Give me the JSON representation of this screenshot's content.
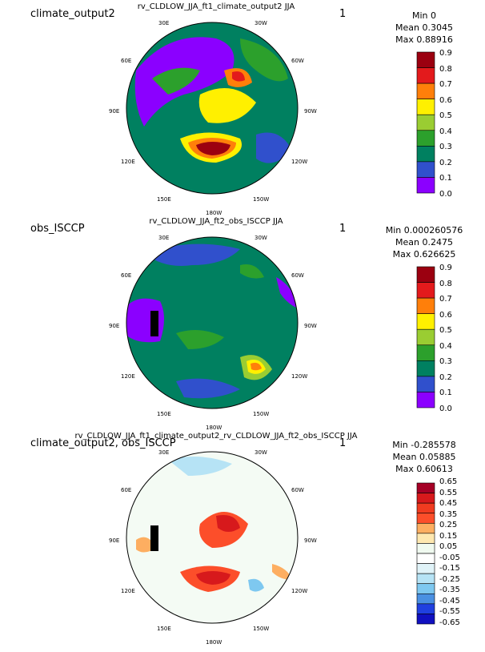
{
  "panels": [
    {
      "left_label": "climate_output2",
      "title": "rv_CLDLOW_JJA_ft1_climate_output2  JJA",
      "right_label": "1",
      "stats": [
        "Min 0",
        "Mean 0.3045",
        "Max 0.88916"
      ],
      "colorbar": {
        "ticks": [
          "0.9",
          "0.8",
          "0.7",
          "0.6",
          "0.5",
          "0.4",
          "0.3",
          "0.2",
          "0.1",
          "0.0"
        ],
        "colors": [
          "#9b0010",
          "#e31a1c",
          "#ff7f0a",
          "#fff000",
          "#9acd32",
          "#2ca02c",
          "#008060",
          "#3050cc",
          "#8b00ff"
        ]
      }
    },
    {
      "left_label": "obs_ISCCP",
      "title": "rv_CLDLOW_JJA_ft2_obs_ISCCP  JJA",
      "right_label": "1",
      "stats": [
        "Min 0.000260576",
        "Mean 0.2475",
        "Max 0.626625"
      ],
      "colorbar": {
        "ticks": [
          "0.9",
          "0.8",
          "0.7",
          "0.6",
          "0.5",
          "0.4",
          "0.3",
          "0.2",
          "0.1",
          "0.0"
        ],
        "colors": [
          "#9b0010",
          "#e31a1c",
          "#ff7f0a",
          "#fff000",
          "#9acd32",
          "#2ca02c",
          "#008060",
          "#3050cc",
          "#8b00ff"
        ]
      }
    },
    {
      "left_label": "climate_output2, obs_ISCCP",
      "title": "rv_CLDLOW_JJA_ft1_climate_output2_rv_CLDLOW_JJA_ft2_obs_ISCCP  JJA",
      "right_label": "1",
      "stats": [
        "Min -0.285578",
        "Mean 0.05885",
        "Max 0.60613"
      ],
      "colorbar": {
        "ticks": [
          "0.65",
          "0.55",
          "0.45",
          "0.35",
          "0.25",
          "0.15",
          "0.05",
          "-0.05",
          "-0.15",
          "-0.25",
          "-0.35",
          "-0.45",
          "-0.55",
          "-0.65"
        ],
        "colors": [
          "#a50026",
          "#d7191c",
          "#f03b20",
          "#fc4e2a",
          "#fdae61",
          "#fee8b0",
          "#f0faf0",
          "#ffffff",
          "#e0f3f8",
          "#b6e3f5",
          "#7ec8f0",
          "#4a90e2",
          "#2040e0",
          "#1010c0"
        ]
      }
    }
  ],
  "meridians": [
    "30E",
    "30W",
    "60E",
    "60W",
    "90E",
    "90W",
    "120E",
    "120W",
    "150E",
    "150W",
    "180W"
  ],
  "map_legend_colors": {
    "ocean_base": "#008060",
    "low": "#8b00ff",
    "mid": "#2ca02c",
    "high": "#e31a1c",
    "diff_pos": "#e31a1c",
    "diff_neg": "#7ec8f0"
  }
}
